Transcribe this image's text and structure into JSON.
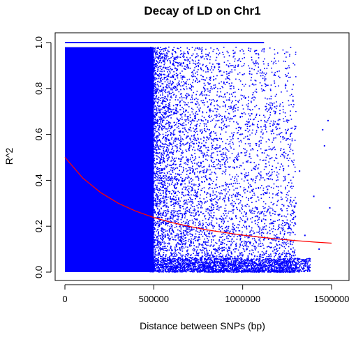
{
  "chart_data": {
    "type": "scatter",
    "title": "Decay of LD on Chr1",
    "xlabel": "Distance between SNPs (bp)",
    "ylabel": "R^2",
    "xlim": [
      0,
      1500000
    ],
    "ylim": [
      0,
      1
    ],
    "x_ticks": [
      0,
      500000,
      1000000,
      1500000
    ],
    "x_tick_labels": [
      "0",
      "500000",
      "1000000",
      "1500000"
    ],
    "y_ticks": [
      0.0,
      0.2,
      0.4,
      0.6,
      0.8,
      1.0
    ],
    "y_tick_labels": [
      "0.0",
      "0.2",
      "0.4",
      "0.6",
      "0.8",
      "1.0"
    ],
    "grid": false,
    "legend": "none",
    "series": [
      {
        "kind": "points",
        "color": "#0000ff",
        "dense_region": {
          "x": [
            0,
            500000
          ],
          "y": [
            0,
            0.98
          ]
        },
        "ceiling_line": {
          "y": 1.0,
          "x": [
            0,
            1120000
          ]
        },
        "sample_points": [
          [
            560000,
            0.92
          ],
          [
            590000,
            0.71
          ],
          [
            620000,
            0.84
          ],
          [
            650000,
            0.55
          ],
          [
            680000,
            0.77
          ],
          [
            700000,
            0.62
          ],
          [
            720000,
            0.44
          ],
          [
            750000,
            0.9
          ],
          [
            770000,
            0.66
          ],
          [
            800000,
            0.51
          ],
          [
            820000,
            0.73
          ],
          [
            850000,
            0.38
          ],
          [
            880000,
            0.58
          ],
          [
            900000,
            0.47
          ],
          [
            930000,
            0.81
          ],
          [
            960000,
            0.33
          ],
          [
            990000,
            0.6
          ],
          [
            1020000,
            0.42
          ],
          [
            1050000,
            0.69
          ],
          [
            1080000,
            0.28
          ],
          [
            1110000,
            0.52
          ],
          [
            1140000,
            0.36
          ],
          [
            1170000,
            0.64
          ],
          [
            1200000,
            0.25
          ],
          [
            1230000,
            0.45
          ],
          [
            1260000,
            0.2
          ],
          [
            1300000,
            0.3
          ],
          [
            1350000,
            0.16
          ],
          [
            1400000,
            0.33
          ],
          [
            1430000,
            0.1
          ],
          [
            1450000,
            0.62
          ],
          [
            1460000,
            0.55
          ],
          [
            1480000,
            0.66
          ],
          [
            1490000,
            0.28
          ],
          [
            1320000,
            0.44
          ],
          [
            1250000,
            0.58
          ],
          [
            1180000,
            0.72
          ],
          [
            1000000,
            0.86
          ],
          [
            1100000,
            0.88
          ],
          [
            1205000,
            0.6
          ]
        ]
      },
      {
        "kind": "fitted-curve",
        "color": "#ff0000",
        "x": [
          0,
          100000,
          200000,
          300000,
          400000,
          500000,
          600000,
          700000,
          800000,
          900000,
          1000000,
          1100000,
          1200000,
          1300000,
          1400000,
          1500000
        ],
        "y": [
          0.5,
          0.41,
          0.347,
          0.3,
          0.265,
          0.238,
          0.216,
          0.199,
          0.184,
          0.172,
          0.161,
          0.152,
          0.144,
          0.137,
          0.131,
          0.126
        ]
      }
    ]
  }
}
